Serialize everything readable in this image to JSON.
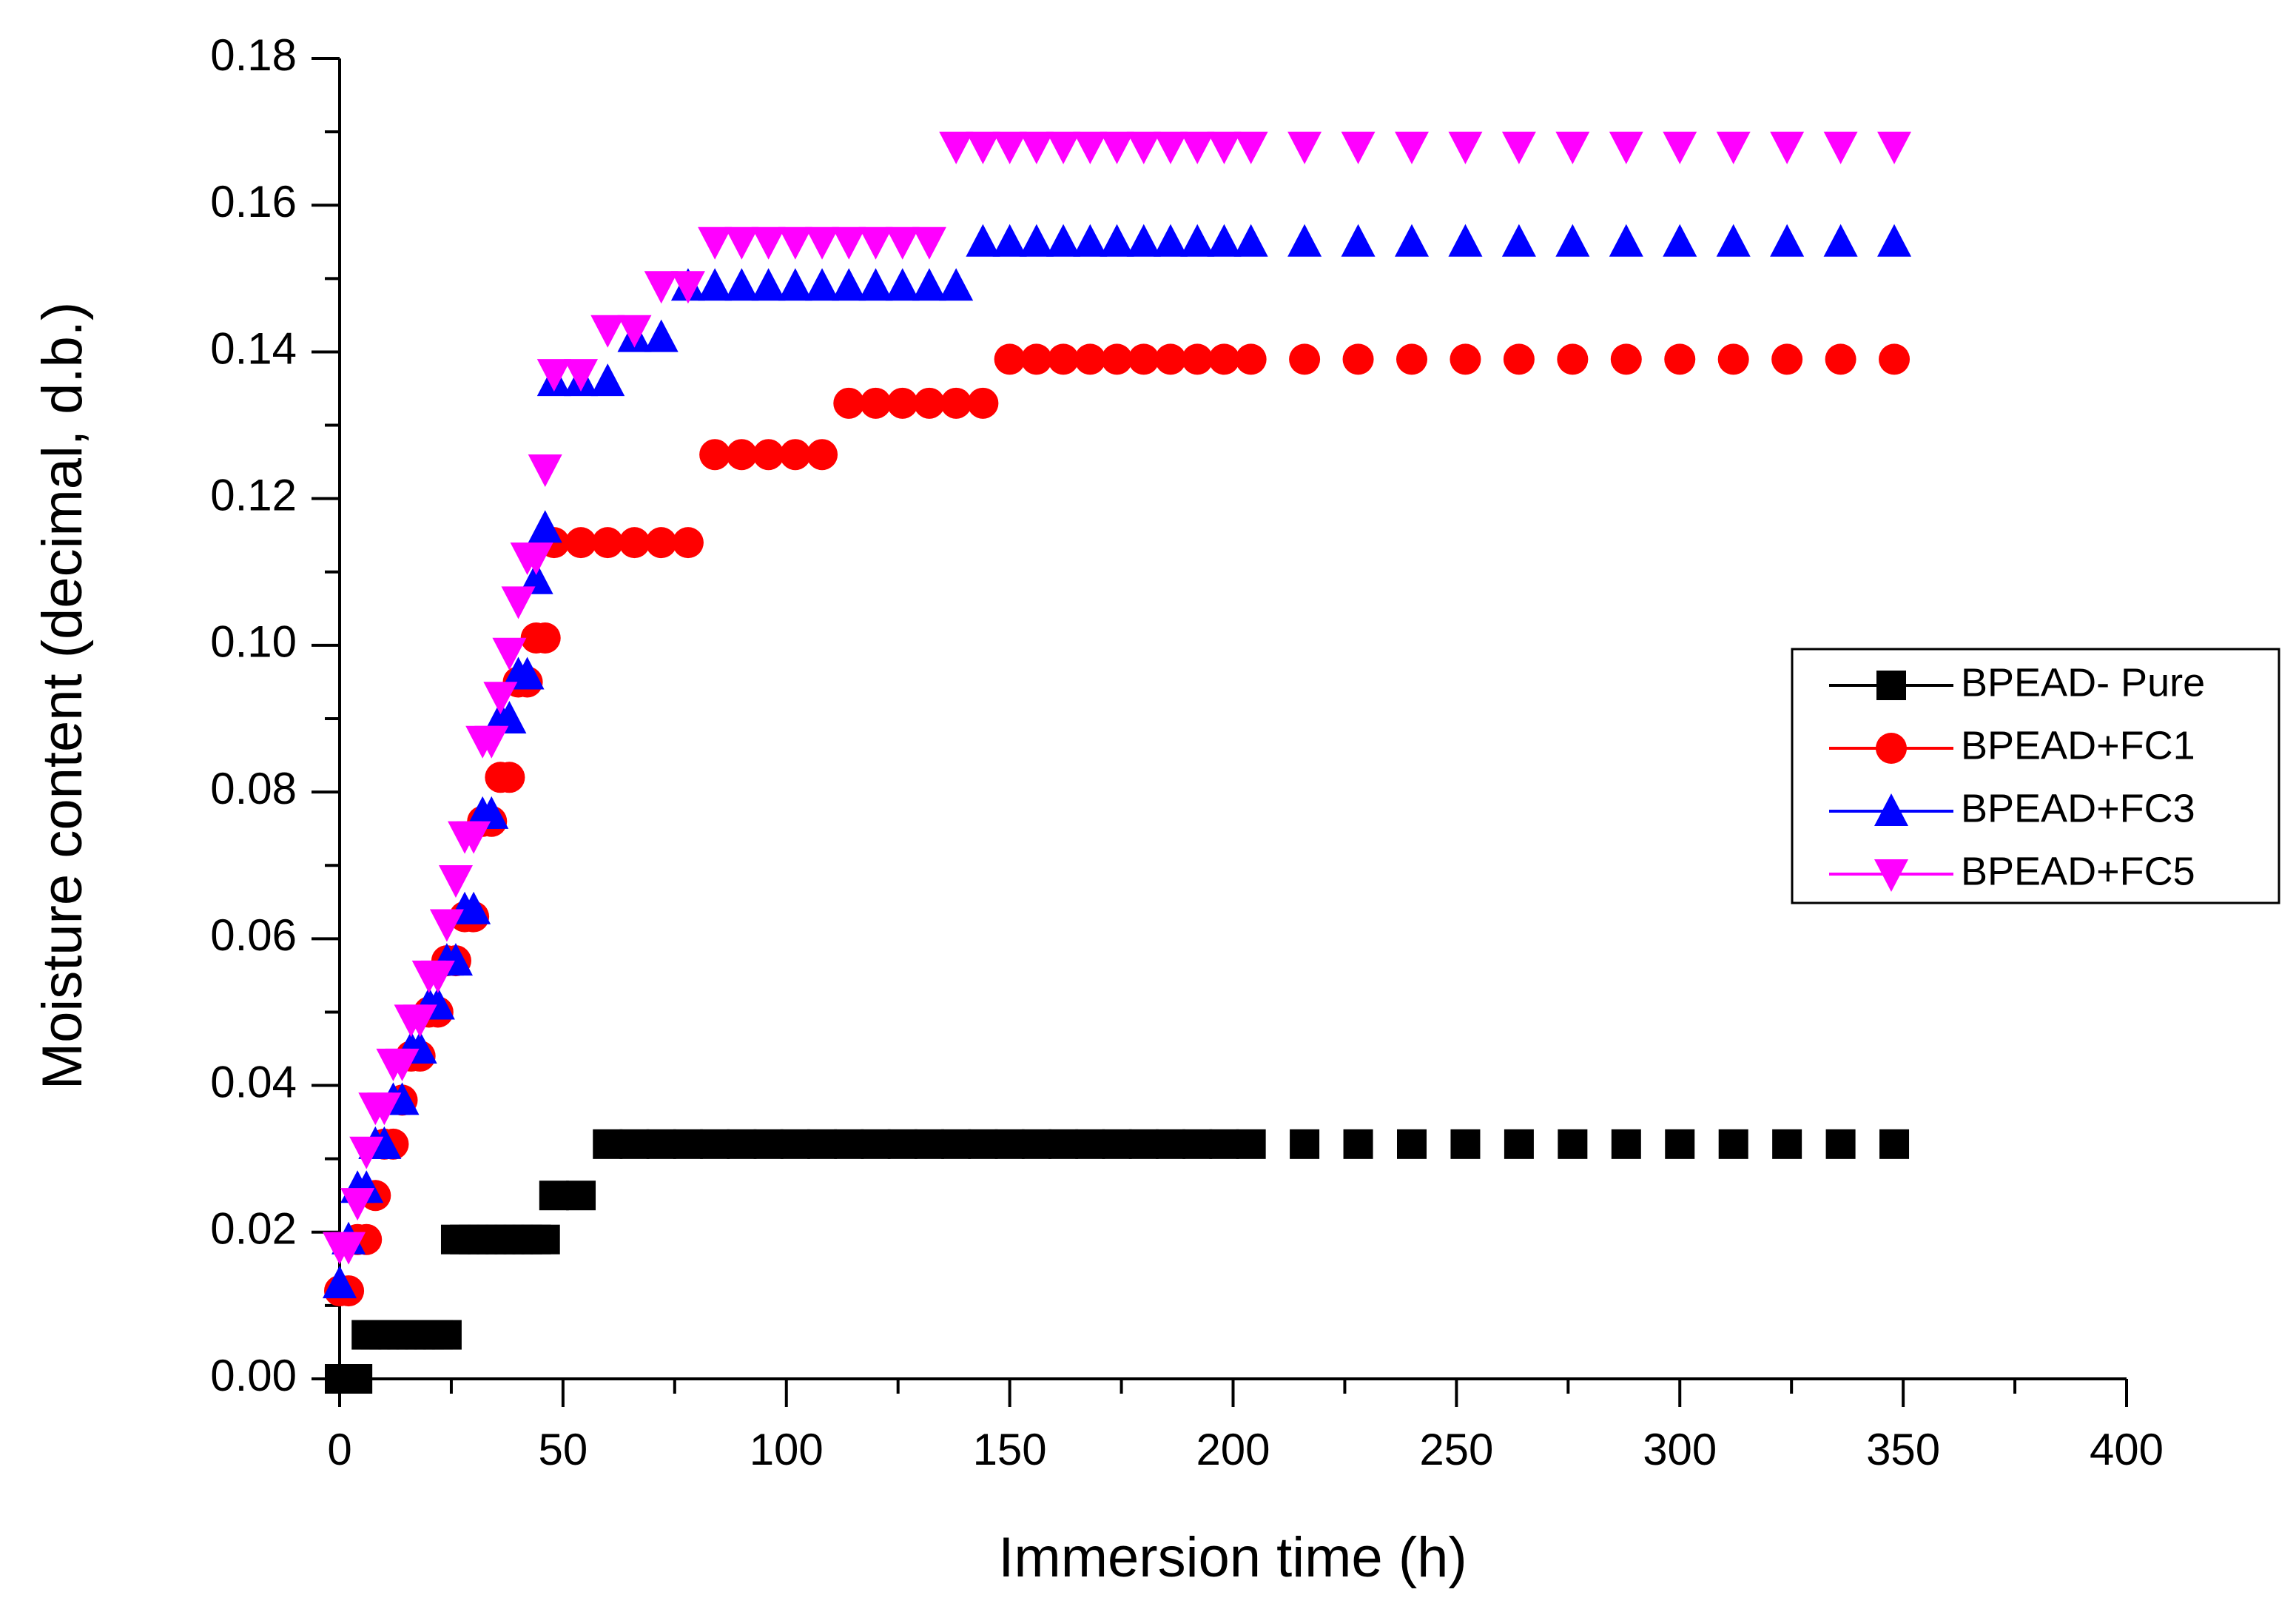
{
  "chart_data": {
    "type": "scatter",
    "x_label": "Immersion time (h)",
    "y_label": "Moisture content (decimal, d.b.)",
    "xlim": [
      0,
      400
    ],
    "xticks": [
      0,
      50,
      100,
      150,
      200,
      250,
      300,
      350,
      400
    ],
    "ylim": [
      0,
      0.18
    ],
    "yticks": [
      {
        "value": 0,
        "label": "0.00"
      },
      {
        "value": 0.02,
        "label": "0.02"
      },
      {
        "value": 0.04,
        "label": "0.04"
      },
      {
        "value": 0.06,
        "label": "0.06"
      },
      {
        "value": 0.08,
        "label": "0.08"
      },
      {
        "value": 0.1,
        "label": "0.10"
      },
      {
        "value": 0.12,
        "label": "0.12"
      },
      {
        "value": 0.14,
        "label": "0.14"
      },
      {
        "value": 0.16,
        "label": "0.16"
      },
      {
        "value": 0.18,
        "label": "0.18"
      }
    ],
    "x": [
      0,
      2,
      4,
      6,
      8,
      10,
      12,
      14,
      16,
      18,
      20,
      22,
      24,
      26,
      28,
      30,
      32,
      34,
      36,
      38,
      40,
      42,
      44,
      46,
      48,
      54,
      60,
      66,
      72,
      78,
      84,
      90,
      96,
      102,
      108,
      114,
      120,
      126,
      132,
      138,
      144,
      150,
      156,
      162,
      168,
      174,
      180,
      186,
      192,
      198,
      204,
      216,
      228,
      240,
      252,
      264,
      276,
      288,
      300,
      312,
      324,
      336,
      348
    ],
    "series": [
      {
        "name": "BPEAD- Pure",
        "color": "#000000",
        "marker": "square",
        "values": [
          0,
          0,
          0,
          0.006,
          0.006,
          0.006,
          0.006,
          0.006,
          0.006,
          0.006,
          0.006,
          0.006,
          0.006,
          0.019,
          0.019,
          0.019,
          0.019,
          0.019,
          0.019,
          0.019,
          0.019,
          0.019,
          0.019,
          0.019,
          0.025,
          0.025,
          0.032,
          0.032,
          0.032,
          0.032,
          0.032,
          0.032,
          0.032,
          0.032,
          0.032,
          0.032,
          0.032,
          0.032,
          0.032,
          0.032,
          0.032,
          0.032,
          0.032,
          0.032,
          0.032,
          0.032,
          0.032,
          0.032,
          0.032,
          0.032,
          0.032,
          0.032,
          0.032,
          0.032,
          0.032,
          0.032,
          0.032,
          0.032,
          0.032,
          0.032,
          0.032,
          0.032,
          0.032
        ]
      },
      {
        "name": "BPEAD+FC1",
        "color": "#ff0000",
        "marker": "circle",
        "values": [
          0.012,
          0.012,
          0.019,
          0.019,
          0.025,
          0.032,
          0.032,
          0.038,
          0.044,
          0.044,
          0.05,
          0.05,
          0.057,
          0.057,
          0.063,
          0.063,
          0.076,
          0.076,
          0.082,
          0.082,
          0.095,
          0.095,
          0.101,
          0.101,
          0.114,
          0.114,
          0.114,
          0.114,
          0.114,
          0.114,
          0.126,
          0.126,
          0.126,
          0.126,
          0.126,
          0.133,
          0.133,
          0.133,
          0.133,
          0.133,
          0.133,
          0.139,
          0.139,
          0.139,
          0.139,
          0.139,
          0.139,
          0.139,
          0.139,
          0.139,
          0.139,
          0.139,
          0.139,
          0.139,
          0.139,
          0.139,
          0.139,
          0.139,
          0.139,
          0.139,
          0.139,
          0.139,
          0.139
        ]
      },
      {
        "name": "BPEAD+FC3",
        "color": "#0000ff",
        "marker": "triangle-up",
        "values": [
          0.013,
          0.019,
          0.026,
          0.026,
          0.032,
          0.032,
          0.038,
          0.038,
          0.045,
          0.045,
          0.051,
          0.051,
          0.057,
          0.057,
          0.064,
          0.064,
          0.077,
          0.077,
          0.09,
          0.09,
          0.096,
          0.096,
          0.109,
          0.116,
          0.136,
          0.136,
          0.136,
          0.142,
          0.142,
          0.149,
          0.149,
          0.149,
          0.149,
          0.149,
          0.149,
          0.149,
          0.149,
          0.149,
          0.149,
          0.149,
          0.155,
          0.155,
          0.155,
          0.155,
          0.155,
          0.155,
          0.155,
          0.155,
          0.155,
          0.155,
          0.155,
          0.155,
          0.155,
          0.155,
          0.155,
          0.155,
          0.155,
          0.155,
          0.155,
          0.155,
          0.155,
          0.155,
          0.155
        ]
      },
      {
        "name": "BPEAD+FC5",
        "color": "#ff00ff",
        "marker": "triangle-down",
        "values": [
          0.018,
          0.018,
          0.024,
          0.031,
          0.037,
          0.037,
          0.043,
          0.043,
          0.049,
          0.049,
          0.055,
          0.055,
          0.062,
          0.068,
          0.074,
          0.074,
          0.087,
          0.087,
          0.093,
          0.099,
          0.106,
          0.112,
          0.112,
          0.124,
          0.137,
          0.137,
          0.143,
          0.143,
          0.149,
          0.149,
          0.155,
          0.155,
          0.155,
          0.155,
          0.155,
          0.155,
          0.155,
          0.155,
          0.155,
          0.168,
          0.168,
          0.168,
          0.168,
          0.168,
          0.168,
          0.168,
          0.168,
          0.168,
          0.168,
          0.168,
          0.168,
          0.168,
          0.168,
          0.168,
          0.168,
          0.168,
          0.168,
          0.168,
          0.168,
          0.168,
          0.168,
          0.168,
          0.168
        ]
      }
    ]
  }
}
